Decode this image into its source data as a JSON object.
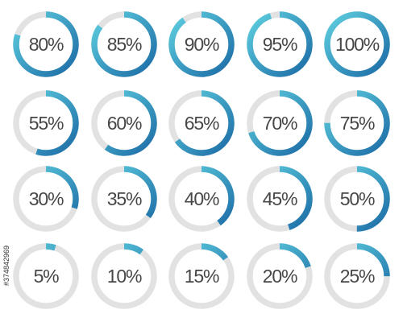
{
  "chart_data": {
    "type": "progress-ring",
    "values": [
      80,
      85,
      90,
      95,
      100,
      55,
      60,
      65,
      70,
      75,
      30,
      35,
      40,
      45,
      50,
      5,
      10,
      15,
      20,
      25
    ],
    "value_labels": [
      "80%",
      "85%",
      "90%",
      "95%",
      "100%",
      "55%",
      "60%",
      "65%",
      "70%",
      "75%",
      "30%",
      "35%",
      "40%",
      "45%",
      "50%",
      "5%",
      "10%",
      "15%",
      "20%",
      "25%"
    ],
    "ylim": [
      0,
      100
    ],
    "colors": [
      "#5fd0e0",
      "#1b6aa5"
    ],
    "track_color": "#e2e2e2",
    "side_label": "#374842969"
  }
}
